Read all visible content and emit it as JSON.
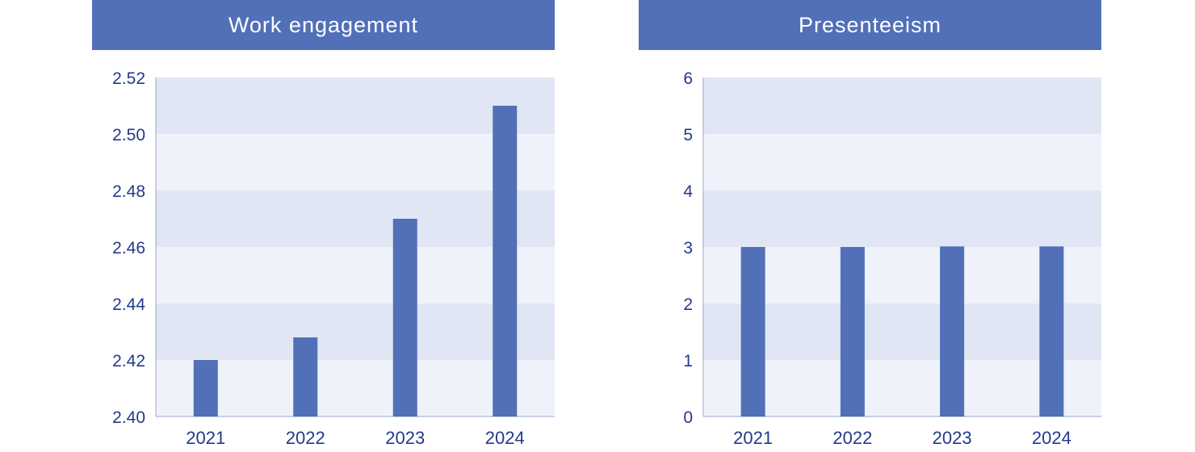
{
  "chart_data": [
    {
      "type": "bar",
      "title": "Work engagement",
      "categories": [
        "2021",
        "2022",
        "2023",
        "2024"
      ],
      "values": [
        2.42,
        2.428,
        2.47,
        2.51
      ],
      "ylim": [
        2.4,
        2.52
      ],
      "yticks": [
        "2.40",
        "2.42",
        "2.44",
        "2.46",
        "2.48",
        "2.50",
        "2.52"
      ],
      "grid": true,
      "colors": {
        "bar": "#5170b8",
        "band_dark": "#e1e6f5",
        "band_light": "#eff2fb",
        "header": "#5170b8",
        "text": "#233a8a"
      }
    },
    {
      "type": "bar",
      "title": "Presenteeism",
      "categories": [
        "2021",
        "2022",
        "2023",
        "2024"
      ],
      "values": [
        3.0,
        3.0,
        3.01,
        3.01
      ],
      "ylim": [
        0,
        6
      ],
      "yticks": [
        "0",
        "1",
        "2",
        "3",
        "4",
        "5",
        "6"
      ],
      "grid": true,
      "colors": {
        "bar": "#5170b8",
        "band_dark": "#e1e6f5",
        "band_light": "#eff2fb",
        "header": "#5170b8",
        "text": "#233a8a"
      }
    }
  ]
}
